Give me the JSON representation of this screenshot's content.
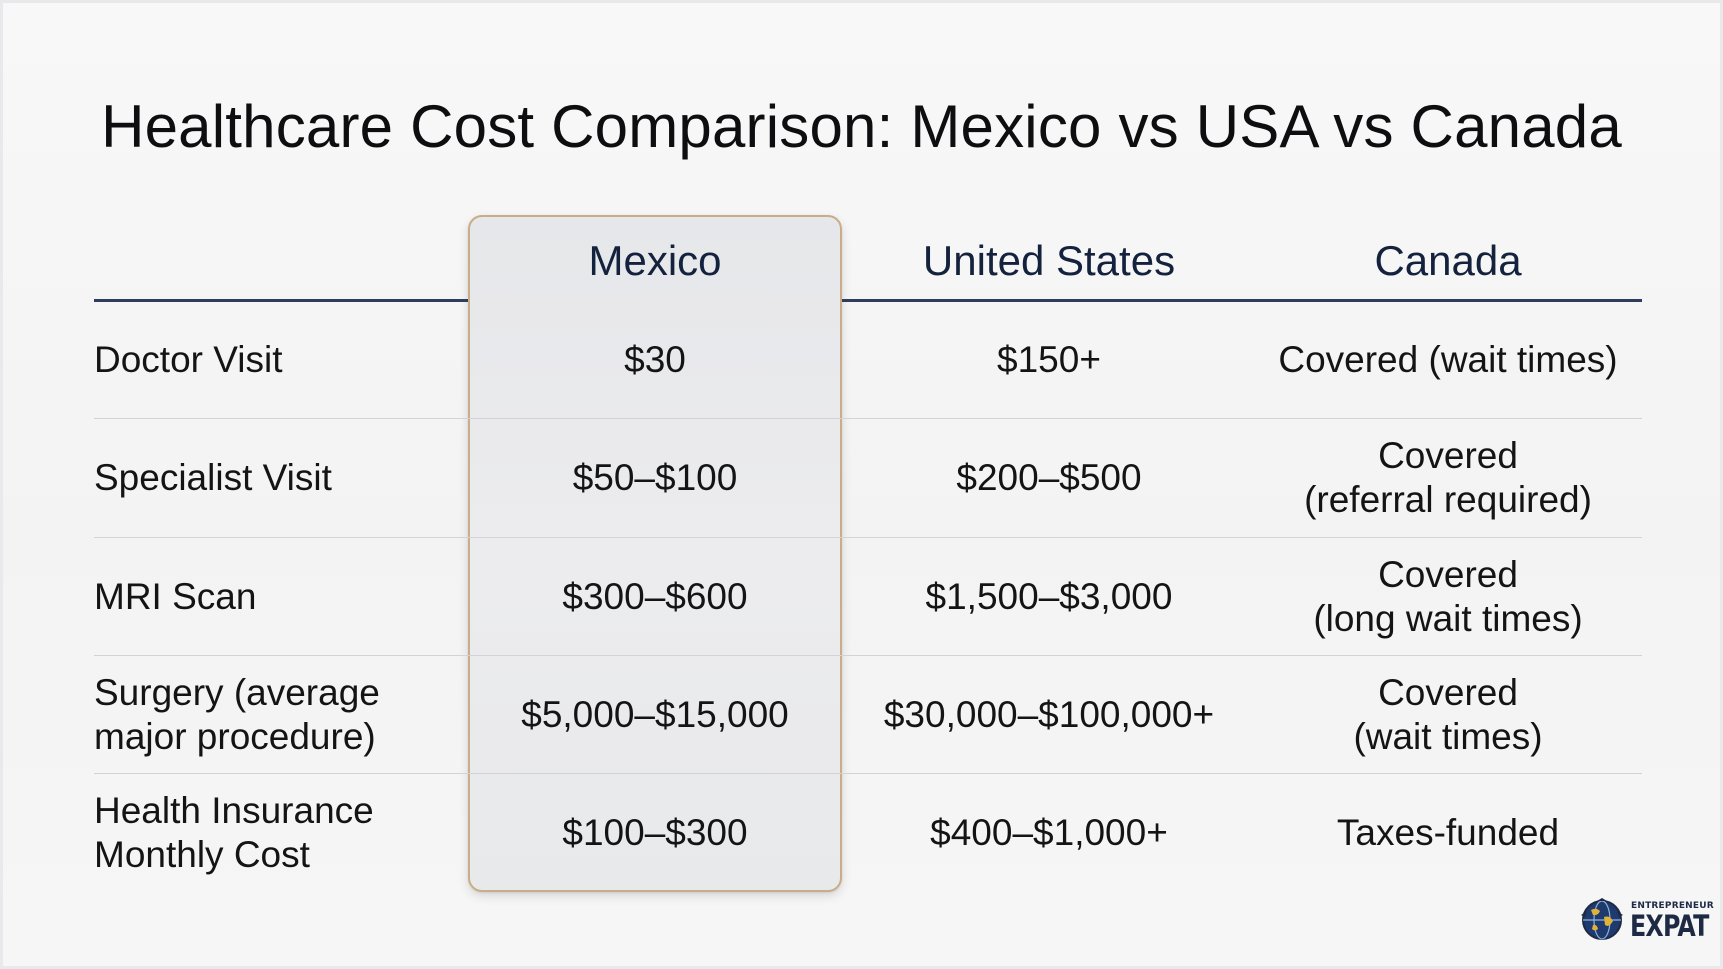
{
  "title": "Healthcare Cost Comparison: Mexico vs USA vs Canada",
  "columns": [
    "Mexico",
    "United States",
    "Canada"
  ],
  "rows": [
    {
      "label": "Doctor Visit",
      "mexico": "$30",
      "usa": "$150+",
      "canada": "Covered (wait times)"
    },
    {
      "label": "Specialist Visit",
      "mexico": "$50–$100",
      "usa": "$200–$500",
      "canada": "Covered\n(referral required)"
    },
    {
      "label": "MRI Scan",
      "mexico": "$300–$600",
      "usa": "$1,500–$3,000",
      "canada": "Covered\n(long wait times)"
    },
    {
      "label": "Surgery (average\nmajor procedure)",
      "mexico": "$5,000–$15,000",
      "usa": "$30,000–$100,000+",
      "canada": "Covered\n(wait times)"
    },
    {
      "label": "Health Insurance\nMonthly Cost",
      "mexico": "$100–$300",
      "usa": "$400–$1,000+",
      "canada": "Taxes-funded"
    }
  ],
  "logo": {
    "line1": "ENTREPRENEUR",
    "line2": "EXPAT",
    "icon": "globe-icon"
  },
  "colors": {
    "highlight_border": "#c8ad86",
    "header_text": "#14223d",
    "header_rule": "#2d3d5c"
  }
}
